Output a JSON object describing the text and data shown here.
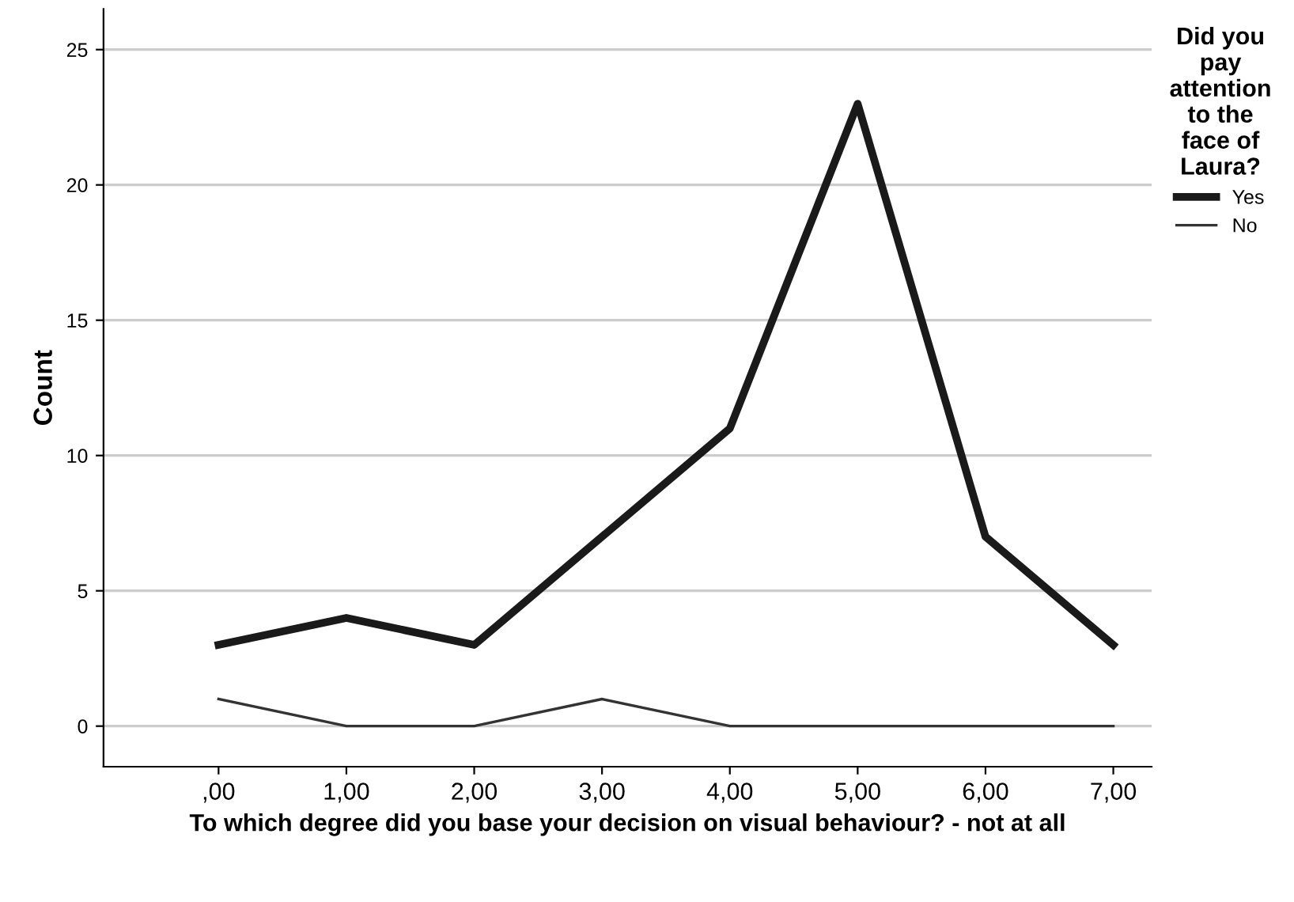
{
  "chart_data": {
    "type": "line",
    "xlabel": "To which degree did you base your decision on visual behaviour? - not at all",
    "ylabel": "Count",
    "legend_title": "Did you pay attention to the face of Laura?",
    "categories": [
      ",00",
      "1,00",
      "2,00",
      "3,00",
      "4,00",
      "5,00",
      "6,00",
      "7,00"
    ],
    "series": [
      {
        "name": "Yes",
        "color": "#1a1a1a",
        "values": [
          3,
          4,
          3,
          7,
          11,
          23,
          7,
          3
        ]
      },
      {
        "name": "No",
        "color": "#333333",
        "values": [
          1,
          0,
          0,
          1,
          0,
          0,
          0,
          0
        ]
      }
    ],
    "ylim": [
      -1.5,
      26.5
    ],
    "yticks": [
      0,
      5,
      10,
      15,
      20,
      25
    ],
    "grid": "y",
    "legend": "right",
    "marker": "none",
    "line_style": "solid"
  }
}
